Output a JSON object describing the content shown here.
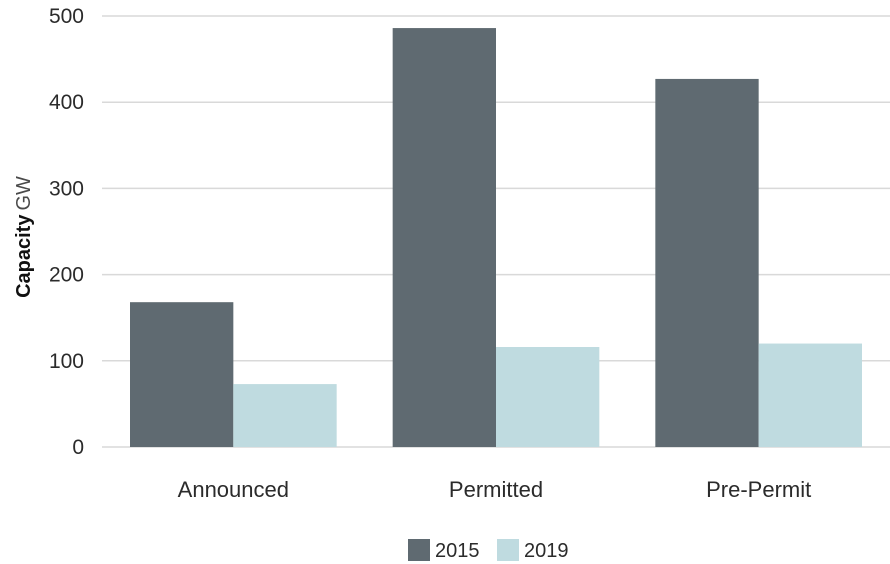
{
  "chart_data": {
    "type": "bar",
    "title": "",
    "xlabel": "",
    "ylabel": "Capacity",
    "ylabel_unit": "GW",
    "categories": [
      "Announced",
      "Permitted",
      "Pre-Permit"
    ],
    "series": [
      {
        "name": "2015",
        "color": "#5f6a71",
        "values": [
          168,
          486,
          427
        ]
      },
      {
        "name": "2019",
        "color": "#bfdbe0",
        "values": [
          73,
          116,
          120
        ]
      }
    ],
    "ylim": [
      0,
      500
    ],
    "yticks": [
      "0",
      "100",
      "200",
      "300",
      "400",
      "500"
    ],
    "grid": true,
    "legend_position": "bottom-center",
    "gridline_color": "#d9d9d9"
  }
}
